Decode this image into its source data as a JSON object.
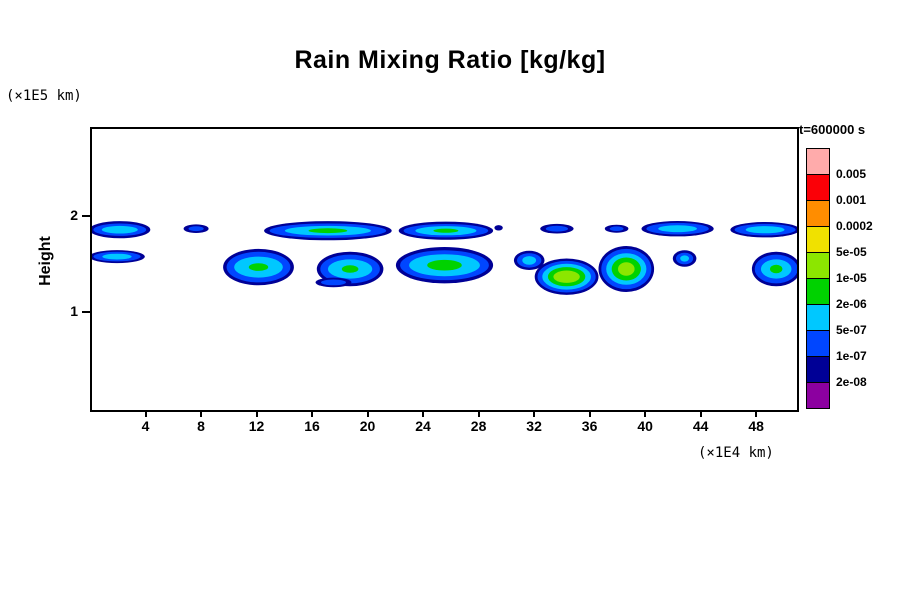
{
  "title": "Rain Mixing Ratio [kg/kg]",
  "axis_units": {
    "y": "(×1E5 km)",
    "x": "(×1E4 km)"
  },
  "y_axis_label": "Height",
  "legend": {
    "time_label": "t=600000 s",
    "levels": [
      "0.005",
      "0.001",
      "0.0002",
      "5e-05",
      "1e-05",
      "2e-06",
      "5e-07",
      "1e-07",
      "2e-08"
    ],
    "colors": [
      "#ffabab",
      "#fb0007",
      "#ff8d00",
      "#f0e100",
      "#8ce600",
      "#00d200",
      "#00c8ff",
      "#0046ff",
      "#000096",
      "#8c00a0"
    ]
  },
  "chart_data": {
    "type": "heatmap",
    "title": "Rain Mixing Ratio [kg/kg]",
    "xlabel": "(×1E4 km)",
    "ylabel": "Height (×1E5 km)",
    "time_annotation": "t=600000 s",
    "x_range": [
      0,
      50.8
    ],
    "y_range": [
      0,
      2.93
    ],
    "x_ticks": [
      4,
      8,
      12,
      16,
      20,
      24,
      28,
      32,
      36,
      40,
      44,
      48
    ],
    "y_ticks": [
      1,
      2
    ],
    "grid": false,
    "legend_position": "right",
    "contour_levels": [
      2e-08,
      1e-07,
      5e-07,
      2e-06,
      1e-05,
      5e-05,
      0.0002,
      0.001,
      0.005
    ],
    "palette": {
      "l1": "#000096",
      "l2": "#0046ff",
      "l3": "#00c8ff",
      "l4": "#00d200",
      "l5": "#8ce600"
    },
    "blobs": [
      {
        "x": 2.0,
        "y": 1.88,
        "peak": 1e-06,
        "layers": [
          [
            "l1",
            2.2,
            0.09
          ],
          [
            "l2",
            1.9,
            0.065
          ],
          [
            "l3",
            1.3,
            0.04
          ]
        ]
      },
      {
        "x": 7.5,
        "y": 1.89,
        "peak": 3e-07,
        "layers": [
          [
            "l1",
            0.9,
            0.045
          ],
          [
            "l2",
            0.55,
            0.025
          ]
        ]
      },
      {
        "x": 17.0,
        "y": 1.87,
        "peak": 3e-06,
        "layers": [
          [
            "l1",
            4.6,
            0.1
          ],
          [
            "l2",
            4.2,
            0.075
          ],
          [
            "l3",
            3.1,
            0.05
          ],
          [
            "l4",
            1.4,
            0.025
          ]
        ]
      },
      {
        "x": 25.5,
        "y": 1.87,
        "peak": 3e-06,
        "layers": [
          [
            "l1",
            3.4,
            0.095
          ],
          [
            "l2",
            3.05,
            0.07
          ],
          [
            "l3",
            2.2,
            0.048
          ],
          [
            "l4",
            0.9,
            0.022
          ]
        ]
      },
      {
        "x": 29.3,
        "y": 1.9,
        "peak": 5e-08,
        "layers": [
          [
            "l1",
            0.3,
            0.028
          ]
        ]
      },
      {
        "x": 33.5,
        "y": 1.89,
        "peak": 3e-07,
        "layers": [
          [
            "l1",
            1.2,
            0.05
          ],
          [
            "l2",
            0.8,
            0.03
          ]
        ]
      },
      {
        "x": 37.8,
        "y": 1.89,
        "peak": 3e-07,
        "layers": [
          [
            "l1",
            0.85,
            0.042
          ],
          [
            "l2",
            0.5,
            0.024
          ]
        ]
      },
      {
        "x": 42.2,
        "y": 1.89,
        "peak": 1e-06,
        "layers": [
          [
            "l1",
            2.6,
            0.08
          ],
          [
            "l2",
            2.25,
            0.06
          ],
          [
            "l3",
            1.4,
            0.035
          ]
        ]
      },
      {
        "x": 48.5,
        "y": 1.88,
        "peak": 1e-06,
        "layers": [
          [
            "l1",
            2.5,
            0.08
          ],
          [
            "l2",
            2.2,
            0.06
          ],
          [
            "l3",
            1.4,
            0.038
          ]
        ]
      },
      {
        "x": 1.8,
        "y": 1.6,
        "peak": 1e-06,
        "layers": [
          [
            "l1",
            2.0,
            0.068
          ],
          [
            "l2",
            1.7,
            0.05
          ],
          [
            "l3",
            1.05,
            0.03
          ]
        ]
      },
      {
        "x": 12.0,
        "y": 1.49,
        "peak": 5e-06,
        "layers": [
          [
            "l1",
            2.55,
            0.19
          ],
          [
            "l2",
            2.3,
            0.16
          ],
          [
            "l3",
            1.75,
            0.11
          ],
          [
            "l4",
            0.7,
            0.04
          ]
        ]
      },
      {
        "x": 18.6,
        "y": 1.47,
        "peak": 3e-06,
        "layers": [
          [
            "l1",
            2.4,
            0.18
          ],
          [
            "l2",
            2.15,
            0.15
          ],
          [
            "l3",
            1.6,
            0.1
          ],
          [
            "l4",
            0.6,
            0.04
          ]
        ]
      },
      {
        "x": 17.4,
        "y": 1.33,
        "peak": 3e-07,
        "layers": [
          [
            "l1",
            1.3,
            0.05
          ],
          [
            "l2",
            0.9,
            0.03
          ]
        ]
      },
      {
        "x": 25.4,
        "y": 1.51,
        "peak": 5e-06,
        "layers": [
          [
            "l1",
            3.5,
            0.19
          ],
          [
            "l2",
            3.2,
            0.155
          ],
          [
            "l3",
            2.55,
            0.115
          ],
          [
            "l4",
            1.25,
            0.055
          ]
        ]
      },
      {
        "x": 31.5,
        "y": 1.56,
        "peak": 1e-06,
        "layers": [
          [
            "l1",
            1.1,
            0.1
          ],
          [
            "l2",
            0.88,
            0.075
          ],
          [
            "l3",
            0.5,
            0.045
          ]
        ]
      },
      {
        "x": 34.2,
        "y": 1.39,
        "peak": 2e-05,
        "layers": [
          [
            "l1",
            2.3,
            0.19
          ],
          [
            "l2",
            2.1,
            0.165
          ],
          [
            "l3",
            1.75,
            0.135
          ],
          [
            "l4",
            1.35,
            0.1
          ],
          [
            "l5",
            0.95,
            0.065
          ]
        ]
      },
      {
        "x": 38.5,
        "y": 1.47,
        "peak": 2e-05,
        "layers": [
          [
            "l1",
            2.0,
            0.24
          ],
          [
            "l2",
            1.8,
            0.21
          ],
          [
            "l3",
            1.45,
            0.165
          ],
          [
            "l4",
            1.05,
            0.12
          ],
          [
            "l5",
            0.6,
            0.07
          ]
        ]
      },
      {
        "x": 42.7,
        "y": 1.58,
        "peak": 1e-06,
        "layers": [
          [
            "l1",
            0.85,
            0.085
          ],
          [
            "l2",
            0.62,
            0.06
          ],
          [
            "l3",
            0.32,
            0.032
          ]
        ]
      },
      {
        "x": 49.3,
        "y": 1.47,
        "peak": 5e-06,
        "layers": [
          [
            "l1",
            1.75,
            0.18
          ],
          [
            "l2",
            1.55,
            0.15
          ],
          [
            "l3",
            1.1,
            0.1
          ],
          [
            "l4",
            0.45,
            0.045
          ]
        ]
      }
    ]
  }
}
